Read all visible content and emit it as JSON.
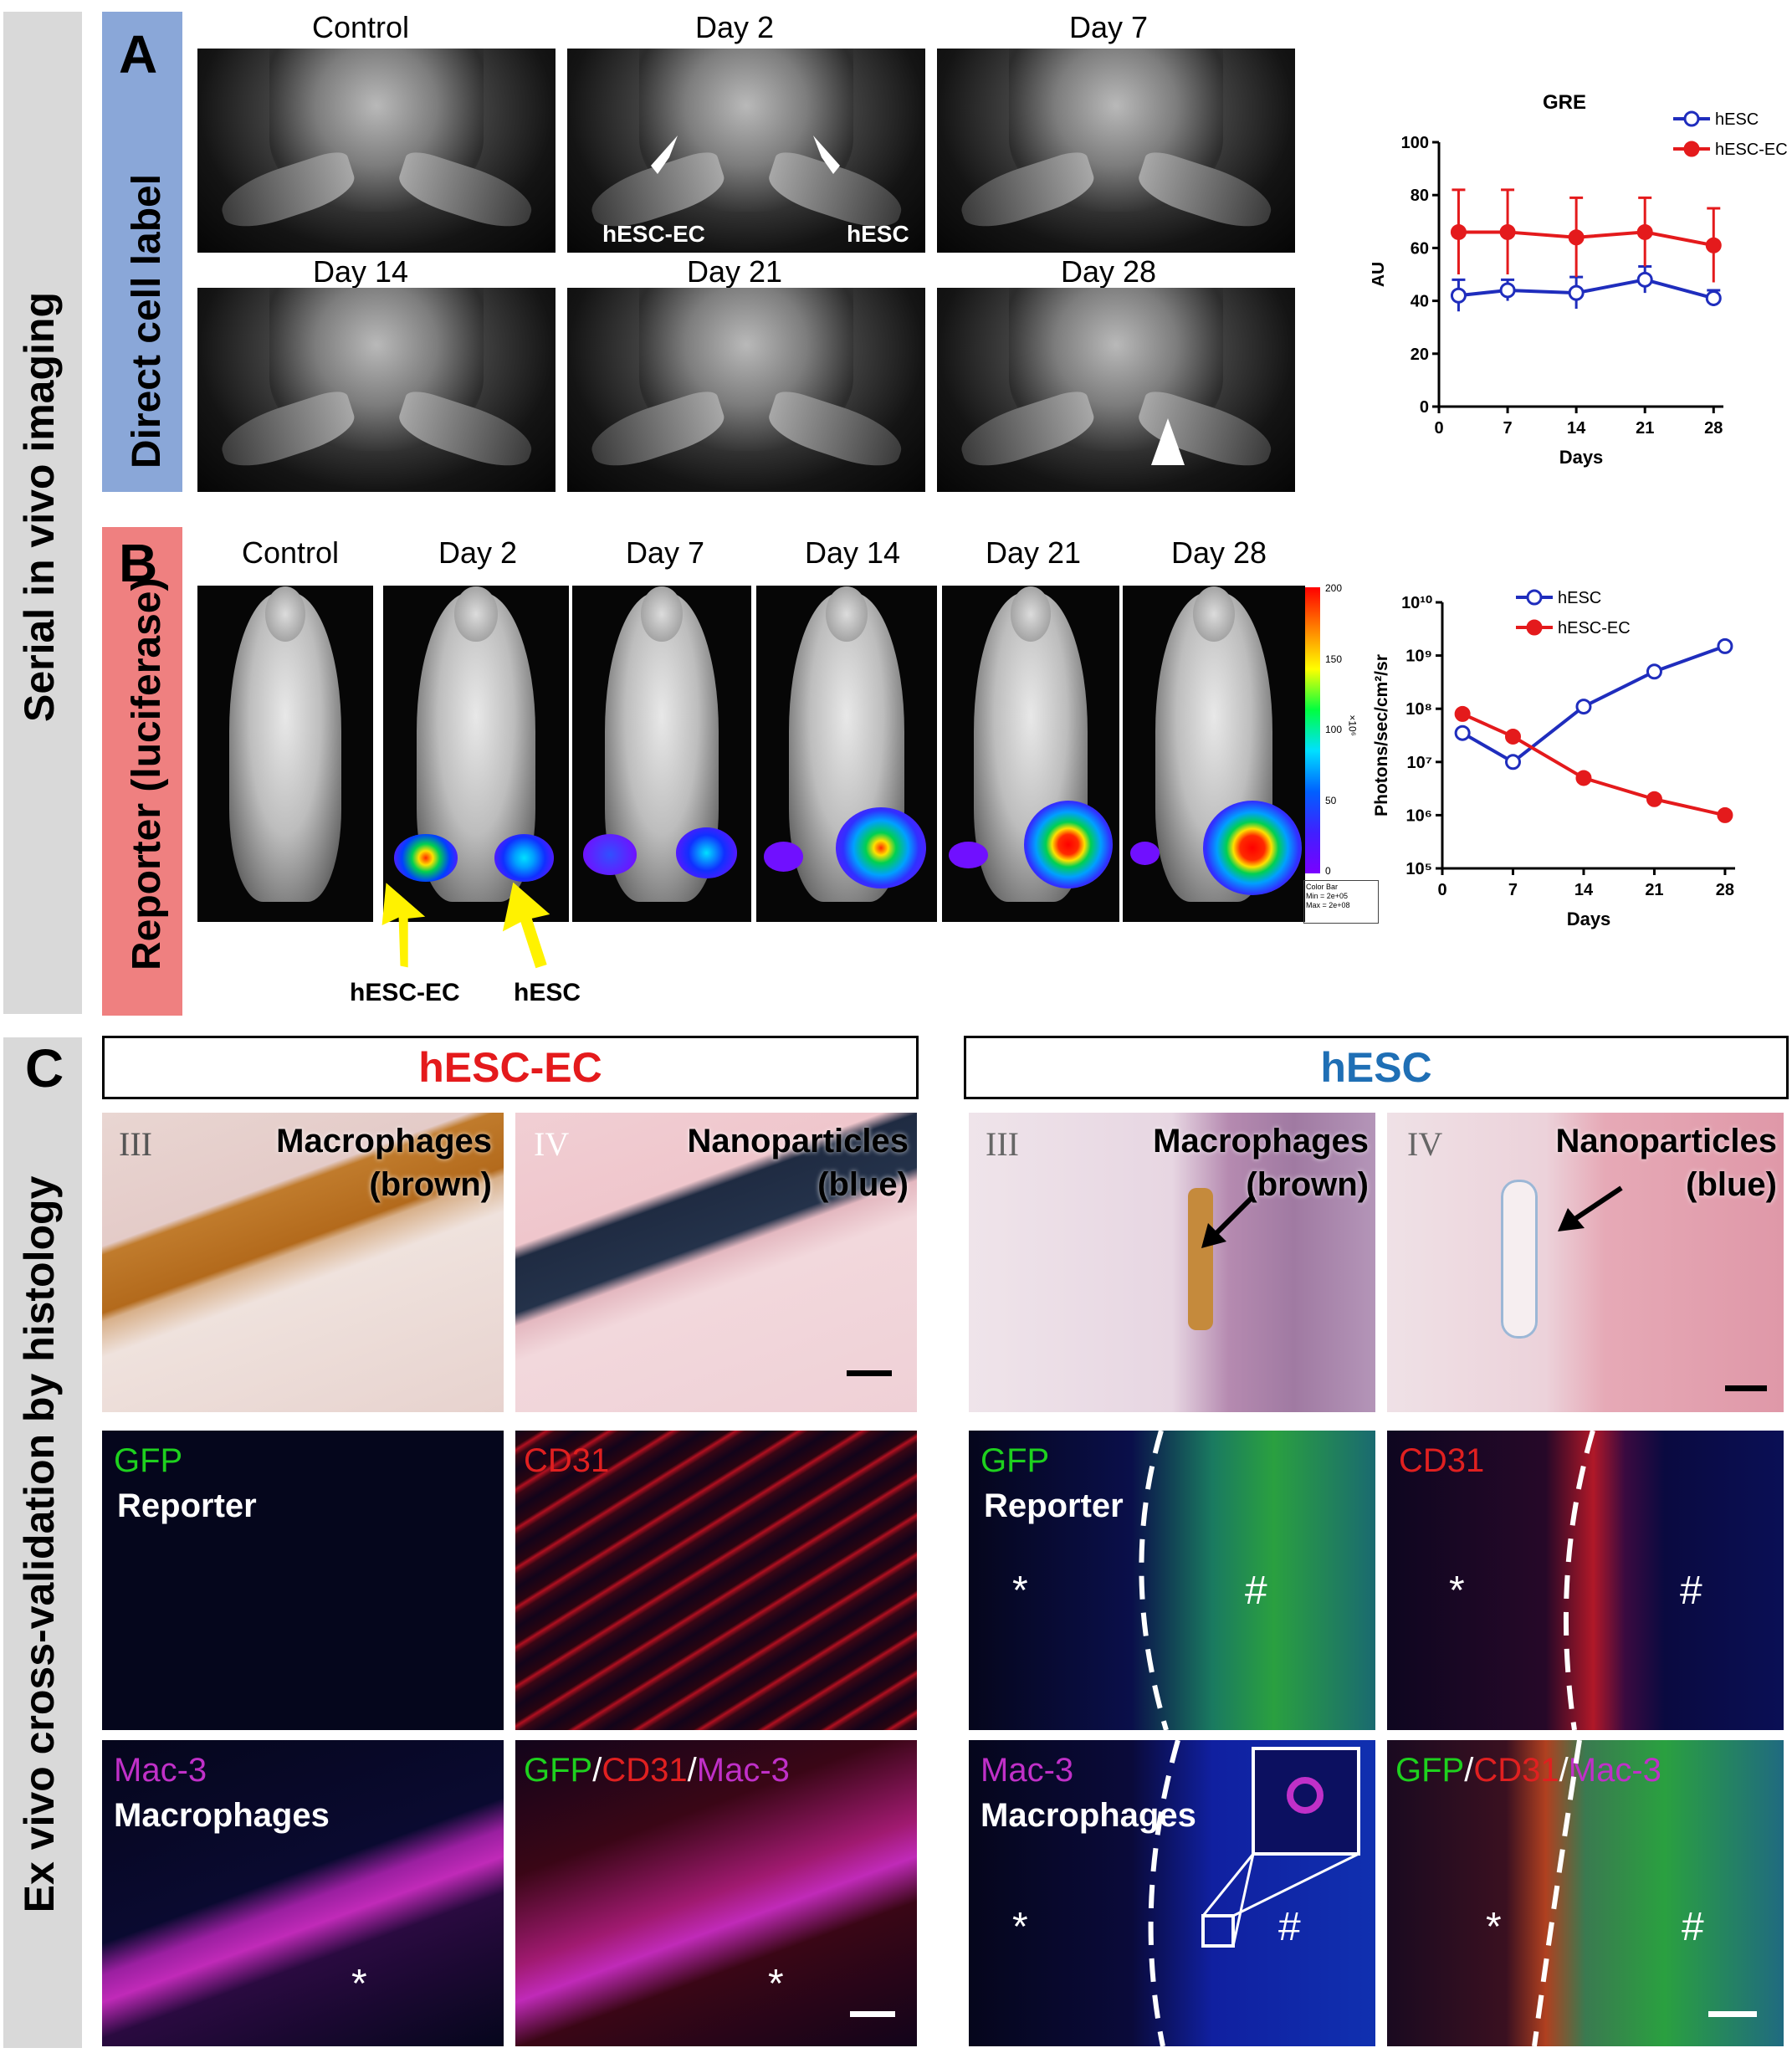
{
  "side_labels": {
    "serial": "Serial in vivo imaging",
    "exvivo": "Ex vivo cross-validation by histology",
    "direct": "Direct cell label",
    "reporter": "Reporter (luciferase)"
  },
  "panels": {
    "a": "A",
    "b": "B",
    "c": "C"
  },
  "panel_a": {
    "labels": [
      "Control",
      "Day 2",
      "Day 7",
      "Day 14",
      "Day 21",
      "Day 28"
    ],
    "arrow_left": "hESC-EC",
    "arrow_right": "hESC"
  },
  "panel_b": {
    "labels": [
      "Control",
      "Day 2",
      "Day 7",
      "Day 14",
      "Day 21",
      "Day 28"
    ],
    "arrow_left": "hESC-EC",
    "arrow_right": "hESC",
    "colorbar_ticks": [
      "200",
      "150",
      "100",
      "50",
      "0"
    ],
    "colorbar_unit": "×10⁶",
    "colorbar_note": "Color Bar\nMin = 2e+05\nMax = 2e+08"
  },
  "panel_c": {
    "left_title": "hESC-EC",
    "right_title": "hESC",
    "title_colors": {
      "left": "#e41a1c",
      "right": "#1f6fb5"
    },
    "histo": {
      "roman3": "III",
      "roman4": "IV",
      "macro": "Macrophages",
      "macro2": "(brown)",
      "nano": "Nanoparticles",
      "nano2": "(blue)"
    },
    "fluor": {
      "gfp": "GFP",
      "reporter": "Reporter",
      "cd31": "CD31",
      "mac3": "Mac-3",
      "macrophages": "Macrophages",
      "slash": "/",
      "star": "*",
      "hash": "#"
    }
  },
  "chart_data": [
    {
      "type": "line",
      "title": "GRE",
      "xlabel": "Days",
      "ylabel": "AU",
      "x": [
        2,
        7,
        14,
        21,
        28
      ],
      "xticks": [
        "0",
        "7",
        "14",
        "21",
        "28"
      ],
      "yticks": [
        "0",
        "20",
        "40",
        "60",
        "80",
        "100"
      ],
      "ylim": [
        0,
        100
      ],
      "xlim": [
        0,
        29
      ],
      "legend_position": "top-right",
      "series": [
        {
          "name": "hESC",
          "values": [
            42,
            44,
            43,
            48,
            41
          ],
          "error": [
            6,
            4,
            6,
            5,
            3
          ],
          "color": "#1f2dbd",
          "marker": "open-circle"
        },
        {
          "name": "hESC-EC",
          "values": [
            66,
            66,
            64,
            66,
            61
          ],
          "error": [
            16,
            16,
            15,
            13,
            14
          ],
          "color": "#e41a1c",
          "marker": "filled-circle"
        }
      ]
    },
    {
      "type": "line",
      "title": "",
      "xlabel": "Days",
      "ylabel": "Photons/sec/cm²/sr",
      "x": [
        2,
        7,
        14,
        21,
        28
      ],
      "xticks": [
        "0",
        "7",
        "14",
        "21",
        "28"
      ],
      "yticks": [
        "10⁵",
        "10⁶",
        "10⁷",
        "10⁸",
        "10⁹",
        "10¹⁰"
      ],
      "yscale": "log",
      "ylim": [
        100000,
        10000000000
      ],
      "xlim": [
        0,
        29
      ],
      "legend_position": "top-left",
      "series": [
        {
          "name": "hESC",
          "values": [
            35000000,
            10000000,
            110000000,
            500000000,
            1500000000
          ],
          "color": "#1f2dbd",
          "marker": "open-circle"
        },
        {
          "name": "hESC-EC",
          "values": [
            80000000,
            30000000,
            5000000,
            2000000,
            1000000
          ],
          "color": "#e41a1c",
          "marker": "filled-circle"
        }
      ]
    }
  ]
}
